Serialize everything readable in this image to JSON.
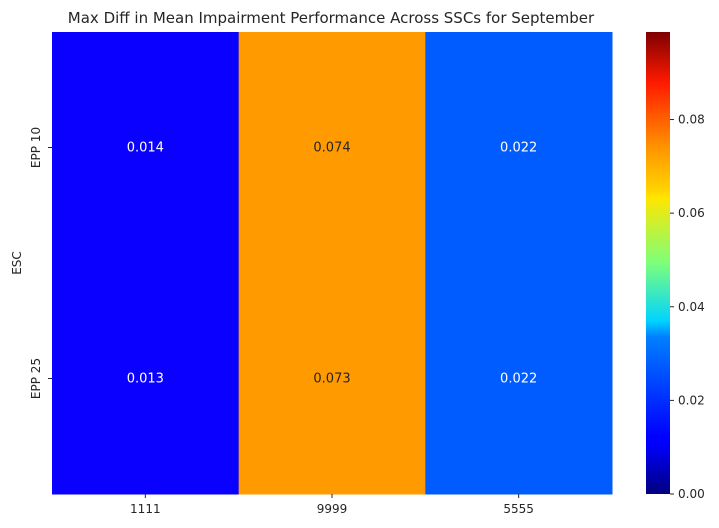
{
  "chart_data": {
    "type": "heatmap",
    "title": "Max Diff in Mean Impairment Performance Across SSCs for September",
    "xlabel": "",
    "ylabel": "ESC",
    "x_categories": [
      "1111",
      "9999",
      "5555"
    ],
    "y_categories": [
      "EPP 10",
      "EPP 25"
    ],
    "values": [
      [
        0.014,
        0.074,
        0.022
      ],
      [
        0.013,
        0.073,
        0.022
      ]
    ],
    "cell_labels": [
      [
        "0.014",
        "0.074",
        "0.022"
      ],
      [
        "0.013",
        "0.073",
        "0.022"
      ]
    ],
    "colormap": "jet",
    "vmin": 0.0,
    "vmax": 0.0987,
    "colorbar_ticks": [
      "0.00",
      "0.02",
      "0.04",
      "0.06",
      "0.08"
    ],
    "colorbar_tick_values": [
      0.0,
      0.02,
      0.04,
      0.06,
      0.08
    ],
    "cell_colors": [
      [
        "#0a00ff",
        "#ff9a00",
        "#005cff"
      ],
      [
        "#0a00ff",
        "#ff9a00",
        "#005cff"
      ]
    ]
  }
}
